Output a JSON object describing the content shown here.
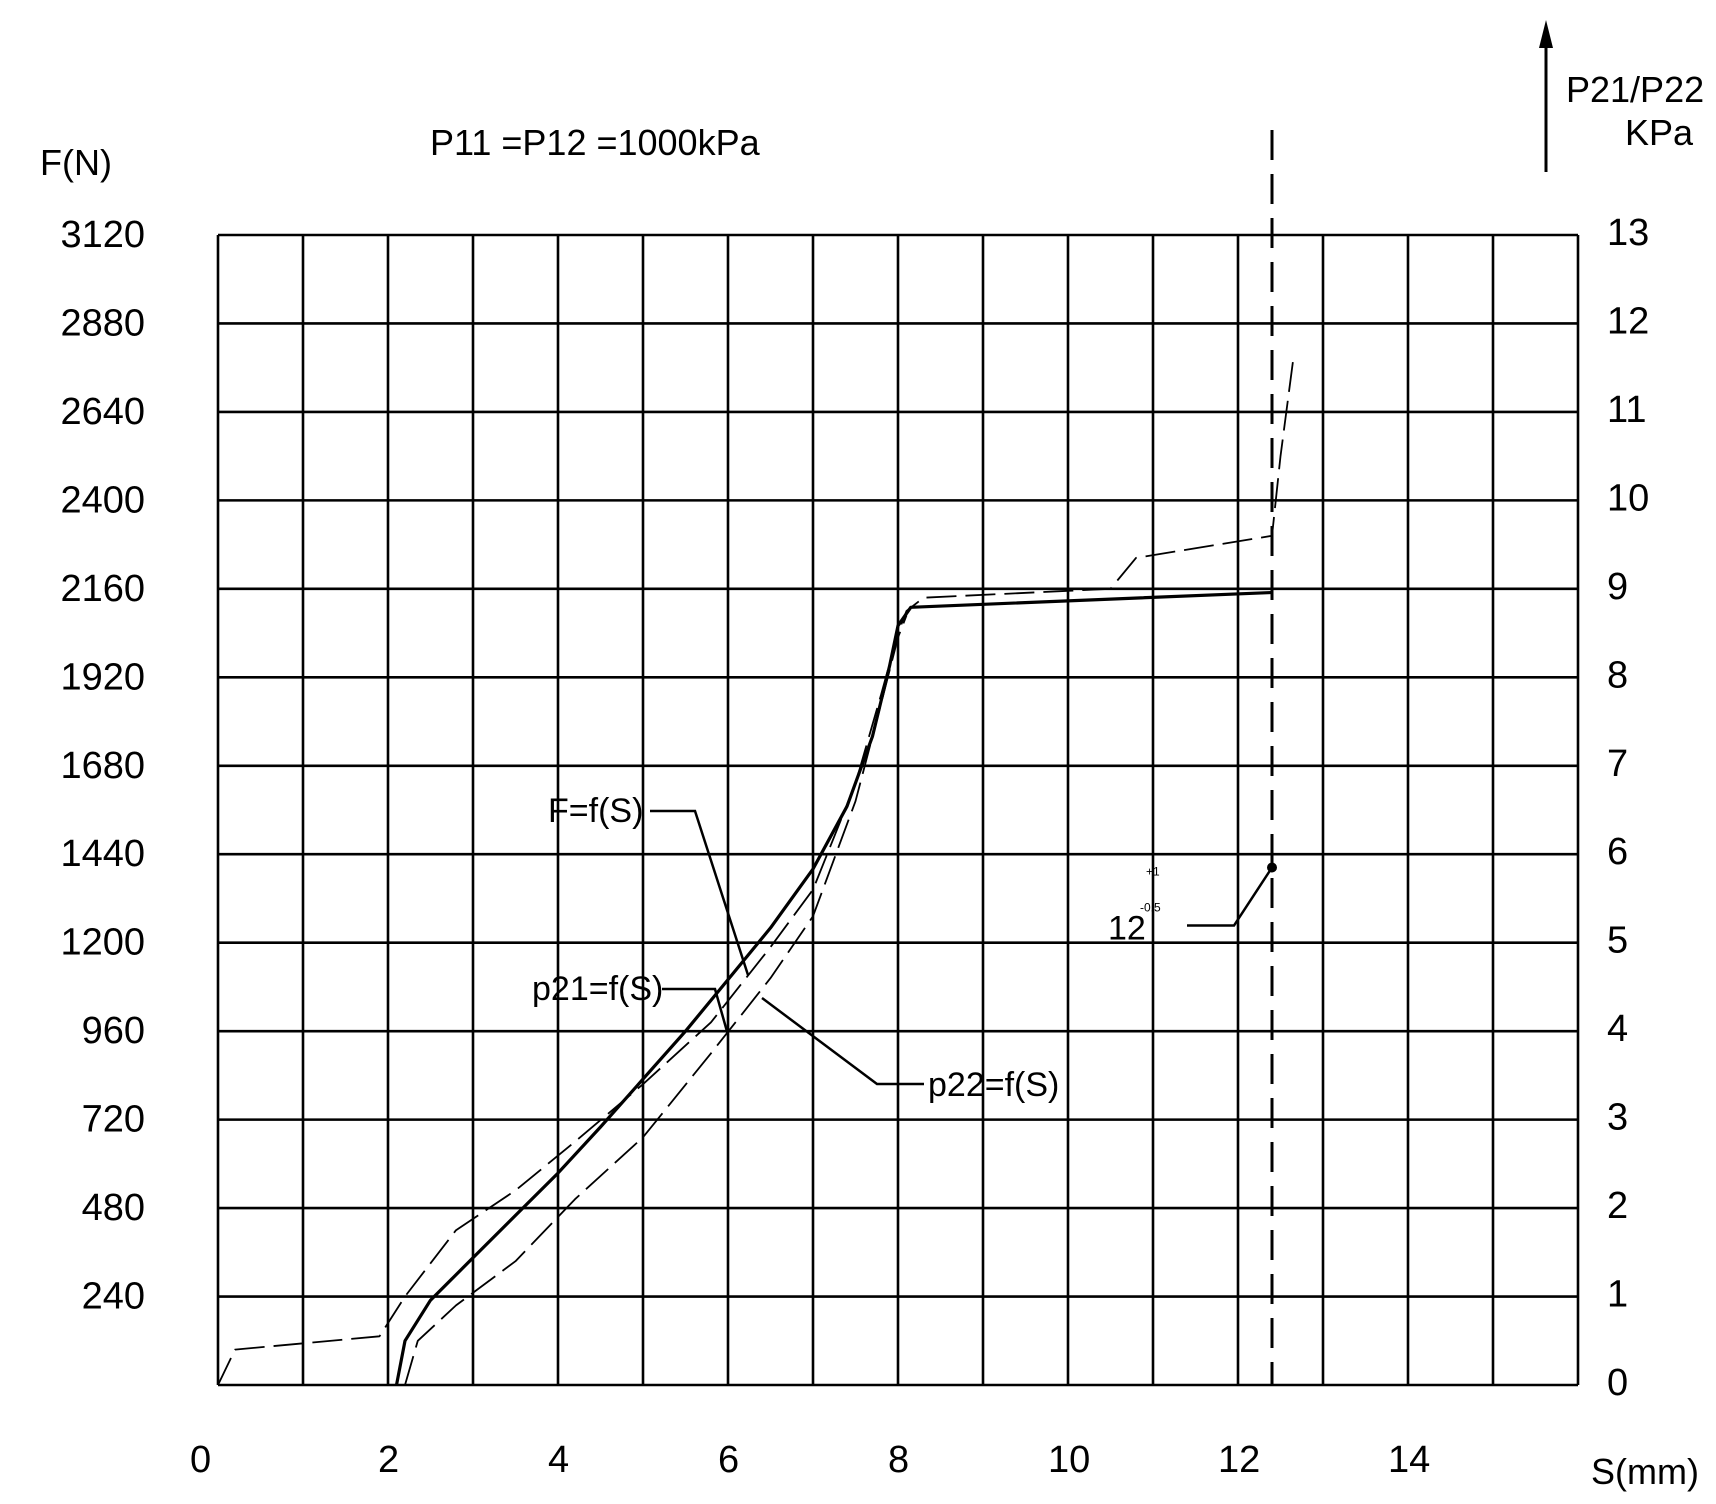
{
  "chart_data": {
    "type": "line",
    "title": "P11  =P12  =1000kPa",
    "xlabel": "S(mm)",
    "ylabel_left": "F(N)",
    "ylabel_right": [
      "P21/P22",
      "KPa"
    ],
    "x_ticks": [
      "0",
      "2",
      "4",
      "6",
      "8",
      "10",
      "12",
      "14"
    ],
    "y_left_ticks": [
      "240",
      "480",
      "720",
      "960",
      "1200",
      "1440",
      "1680",
      "1920",
      "2160",
      "2400",
      "2640",
      "2880",
      "3120"
    ],
    "y_right_ticks": [
      "0",
      "1",
      "2",
      "3",
      "4",
      "5",
      "6",
      "7",
      "8",
      "9",
      "10",
      "11",
      "12",
      "13"
    ],
    "xlim": [
      0,
      16
    ],
    "ylim_left": [
      0,
      3120
    ],
    "ylim_right": [
      0,
      13
    ],
    "grid": true,
    "series": [
      {
        "name": "F=f(S)",
        "style": "solid",
        "x": [
          2.1,
          2.2,
          2.5,
          3.0,
          3.5,
          4.0,
          4.5,
          5.0,
          5.5,
          6.0,
          6.5,
          7.0,
          7.4,
          7.7,
          7.9,
          8.0,
          8.15,
          12.4
        ],
        "y": [
          0,
          120,
          230,
          345,
          460,
          575,
          700,
          830,
          960,
          1100,
          1240,
          1400,
          1570,
          1760,
          1950,
          2060,
          2110,
          2150
        ]
      },
      {
        "name": "p21=f(S)",
        "style": "dashed",
        "x": [
          0,
          0.2,
          1.9,
          2.2,
          2.8,
          3.5,
          4.2,
          5.0,
          5.8,
          6.5,
          7.0,
          7.5,
          7.8,
          8.0,
          8.1,
          8.3,
          10.5,
          10.8,
          12.4,
          12.5,
          12.65
        ],
        "y": [
          0,
          0.4,
          0.55,
          1.0,
          1.75,
          2.2,
          2.75,
          3.4,
          4.1,
          4.95,
          5.6,
          6.8,
          7.8,
          8.5,
          8.75,
          8.9,
          9.0,
          9.35,
          9.6,
          10.5,
          11.6
        ]
      },
      {
        "name": "p22=f(S)",
        "style": "dashed",
        "x": [
          2.2,
          2.35,
          2.8,
          3.5,
          4.2,
          5.0,
          5.8,
          6.5,
          7.0,
          7.5,
          7.8,
          8.0,
          8.1
        ],
        "y": [
          0,
          0.5,
          0.9,
          1.4,
          2.1,
          2.8,
          3.75,
          4.6,
          5.3,
          6.6,
          7.7,
          8.45,
          8.7
        ]
      }
    ],
    "annotations": {
      "vertical_line_x": 12.4,
      "tolerance_base": "12",
      "tolerance_upper": "+1",
      "tolerance_lower": "-0.5",
      "marker_x": 12.4,
      "marker_y_right": 5.85
    }
  }
}
